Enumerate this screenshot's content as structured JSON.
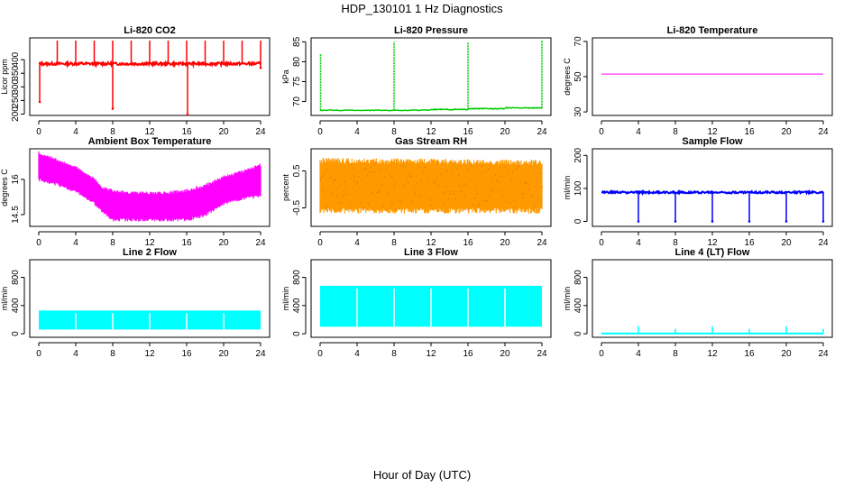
{
  "figure": {
    "title": "HDP_130101  1 Hz Diagnostics",
    "xlabel": "Hour of Day (UTC)"
  },
  "chart_data": [
    {
      "id": "co2",
      "type": "line",
      "title": "Li-820 CO2",
      "ylabel": "Licor ppm",
      "color": "#ff0000",
      "xlim": [
        0,
        24
      ],
      "xticks": [
        0,
        4,
        8,
        12,
        16,
        20,
        24
      ],
      "ylim": [
        195,
        480
      ],
      "yticks": [
        200,
        250,
        300,
        350,
        400
      ],
      "pattern": "baseline_with_spikes",
      "baseline": 385,
      "noise": 5,
      "spikes_up": [
        {
          "x": 2,
          "y": 470
        },
        {
          "x": 4,
          "y": 470
        },
        {
          "x": 6,
          "y": 470
        },
        {
          "x": 8,
          "y": 470
        },
        {
          "x": 10,
          "y": 470
        },
        {
          "x": 12,
          "y": 470
        },
        {
          "x": 14,
          "y": 470
        },
        {
          "x": 16,
          "y": 470
        },
        {
          "x": 18,
          "y": 470
        },
        {
          "x": 20,
          "y": 470
        },
        {
          "x": 22,
          "y": 470
        },
        {
          "x": 24,
          "y": 470
        }
      ],
      "spikes_down": [
        {
          "x": 0.1,
          "y": 245
        },
        {
          "x": 8,
          "y": 220
        },
        {
          "x": 16.1,
          "y": 198
        },
        {
          "x": 24,
          "y": 370
        }
      ]
    },
    {
      "id": "pressure",
      "type": "line",
      "title": "Li-820 Pressure",
      "ylabel": "kPa",
      "color": "#00cc00",
      "xlim": [
        0,
        24
      ],
      "xticks": [
        0,
        4,
        8,
        12,
        16,
        20,
        24
      ],
      "ylim": [
        66.5,
        86
      ],
      "yticks": [
        70,
        75,
        80,
        85
      ],
      "pattern": "stepped_baseline",
      "segments": [
        {
          "x0": 0,
          "x1": 12,
          "y": 67.8
        },
        {
          "x0": 12,
          "x1": 16,
          "y": 68.0
        },
        {
          "x0": 16,
          "x1": 20,
          "y": 68.2
        },
        {
          "x0": 20,
          "x1": 24,
          "y": 68.4
        }
      ],
      "spikes_up": [
        {
          "x": 0.05,
          "y": 82
        },
        {
          "x": 8,
          "y": 85
        },
        {
          "x": 16,
          "y": 85
        },
        {
          "x": 24,
          "y": 85.5
        }
      ]
    },
    {
      "id": "licor_temp",
      "type": "line",
      "title": "Li-820 Temperature",
      "ylabel": "degrees C",
      "color": "#ff00ff",
      "xlim": [
        0,
        24
      ],
      "xticks": [
        0,
        4,
        8,
        12,
        16,
        20,
        24
      ],
      "ylim": [
        28,
        72
      ],
      "yticks": [
        30,
        50,
        70
      ],
      "pattern": "flat",
      "baseline": 51.5
    },
    {
      "id": "ambient",
      "type": "area",
      "title": "Ambient Box Temperature",
      "ylabel": "degrees C",
      "color": "#ff00ff",
      "xlim": [
        0,
        24
      ],
      "xticks": [
        0,
        4,
        8,
        12,
        16,
        20,
        24
      ],
      "ylim": [
        14.0,
        17.3
      ],
      "yticks": [
        14.5,
        16.0
      ],
      "pattern": "envelope",
      "x": [
        0,
        2,
        4,
        6,
        7,
        8,
        10,
        12,
        14,
        16,
        18,
        20,
        22,
        24
      ],
      "upper": [
        17.1,
        16.8,
        16.5,
        16.0,
        15.6,
        15.5,
        15.4,
        15.4,
        15.4,
        15.5,
        15.7,
        16.1,
        16.3,
        16.6
      ],
      "lower": [
        16.0,
        15.8,
        15.5,
        15.0,
        14.6,
        14.3,
        14.3,
        14.3,
        14.3,
        14.3,
        14.5,
        15.0,
        15.2,
        15.3
      ]
    },
    {
      "id": "rh",
      "type": "area",
      "title": "Gas Stream RH",
      "ylabel": "percent",
      "color": "#ff9900",
      "xlim": [
        0,
        24
      ],
      "xticks": [
        0,
        4,
        8,
        12,
        16,
        20,
        24
      ],
      "ylim": [
        -1.0,
        1.1
      ],
      "yticks": [
        -0.5,
        0.5
      ],
      "pattern": "envelope",
      "x": [
        0,
        24
      ],
      "upper": [
        0.75,
        0.7
      ],
      "lower": [
        -0.55,
        -0.55
      ]
    },
    {
      "id": "sample_flow",
      "type": "line",
      "title": "Sample Flow",
      "ylabel": "ml/min",
      "color": "#0000ff",
      "xlim": [
        0,
        24
      ],
      "xticks": [
        0,
        4,
        8,
        12,
        16,
        20,
        24
      ],
      "ylim": [
        -15,
        220
      ],
      "yticks": [
        0,
        100,
        200
      ],
      "pattern": "baseline_with_spikes",
      "baseline": 88,
      "noise": 3,
      "spikes_up": [],
      "spikes_down": [
        {
          "x": 4,
          "y": 0
        },
        {
          "x": 8,
          "y": 0
        },
        {
          "x": 12,
          "y": 0
        },
        {
          "x": 16,
          "y": 0
        },
        {
          "x": 20,
          "y": 0
        },
        {
          "x": 24,
          "y": 0
        }
      ]
    },
    {
      "id": "line2",
      "type": "area",
      "title": "Line 2 Flow",
      "ylabel": "ml/min",
      "color": "#00ffff",
      "xlim": [
        0,
        24
      ],
      "xticks": [
        0,
        4,
        8,
        12,
        16,
        20,
        24
      ],
      "ylim": [
        -50,
        1050
      ],
      "yticks": [
        0,
        400,
        800
      ],
      "pattern": "band",
      "lower": 60,
      "upper": 330,
      "gaps": [
        4,
        8,
        12,
        16,
        20
      ]
    },
    {
      "id": "line3",
      "type": "area",
      "title": "Line 3 Flow",
      "ylabel": "ml/min",
      "color": "#00ffff",
      "xlim": [
        0,
        24
      ],
      "xticks": [
        0,
        4,
        8,
        12,
        16,
        20,
        24
      ],
      "ylim": [
        -50,
        1050
      ],
      "yticks": [
        0,
        400,
        800
      ],
      "pattern": "band",
      "lower": 100,
      "upper": 680,
      "gaps": [
        4,
        8,
        12,
        16,
        20
      ]
    },
    {
      "id": "line4",
      "type": "line",
      "title": "Line 4 (LT) Flow",
      "ylabel": "ml/min",
      "color": "#00ffff",
      "xlim": [
        0,
        24
      ],
      "xticks": [
        0,
        4,
        8,
        12,
        16,
        20,
        24
      ],
      "ylim": [
        -50,
        1050
      ],
      "yticks": [
        0,
        400,
        800
      ],
      "pattern": "baseline_with_spikes",
      "baseline": 5,
      "noise": 0,
      "spikes_up": [
        {
          "x": 4,
          "y": 110
        },
        {
          "x": 8,
          "y": 70
        },
        {
          "x": 12,
          "y": 110
        },
        {
          "x": 16,
          "y": 70
        },
        {
          "x": 20,
          "y": 110
        },
        {
          "x": 24,
          "y": 70
        }
      ],
      "spikes_down": []
    }
  ]
}
